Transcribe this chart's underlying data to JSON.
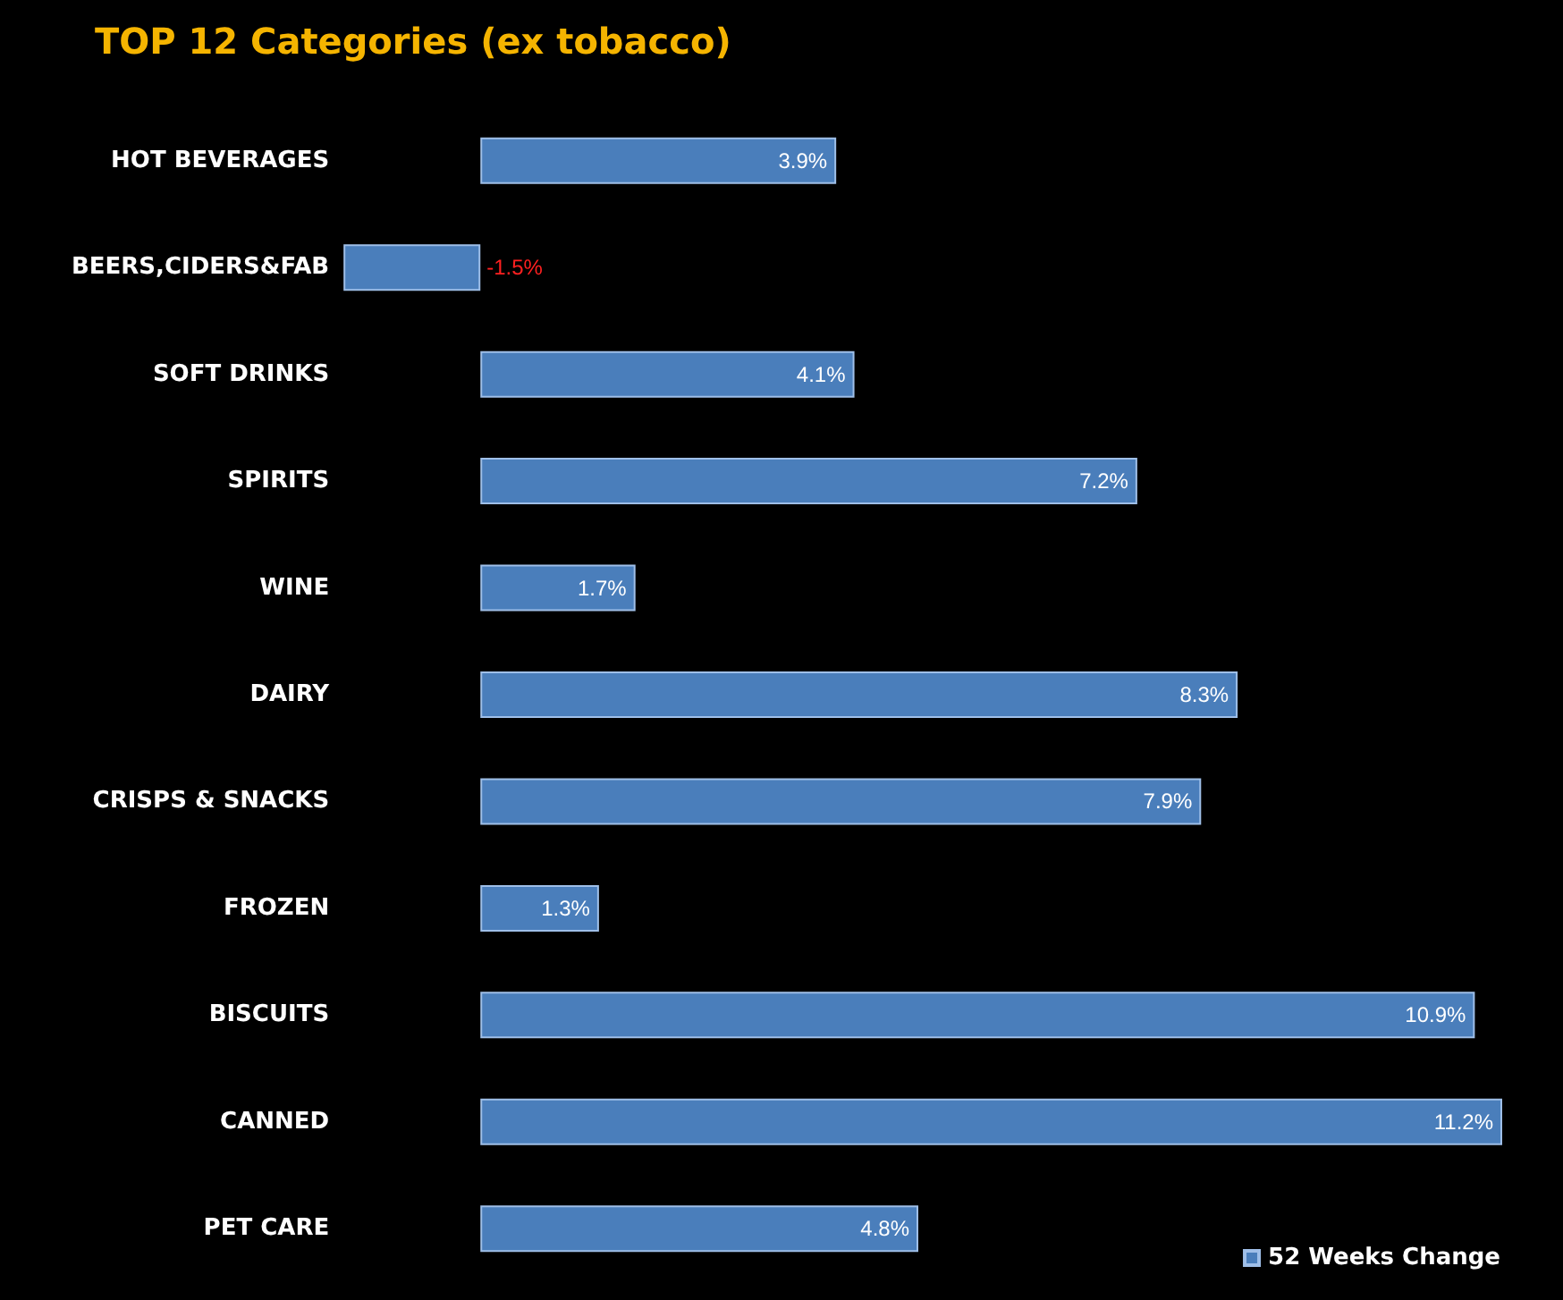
{
  "chart_data": {
    "type": "bar",
    "orientation": "horizontal",
    "title": "TOP 12 Categories (ex tobacco)",
    "categories": [
      "HOT BEVERAGES",
      "BEERS,CIDERS&FAB",
      "SOFT DRINKS",
      "SPIRITS",
      "WINE",
      "DAIRY",
      "CRISPS & SNACKS",
      "FROZEN",
      "BISCUITS",
      "CANNED",
      "PET CARE"
    ],
    "series": [
      {
        "name": "52 Weeks Change",
        "color": "#4a7ebb",
        "values": [
          3.9,
          -1.5,
          4.1,
          7.2,
          1.7,
          8.3,
          7.9,
          1.3,
          10.9,
          11.2,
          4.8
        ],
        "value_labels": [
          "3.9%",
          "-1.5%",
          "4.1%",
          "7.2%",
          "1.7%",
          "8.3%",
          "7.9%",
          "1.3%",
          "10.9%",
          "11.2%",
          "4.8%"
        ]
      }
    ],
    "grid": false,
    "legend": "bottom right"
  }
}
